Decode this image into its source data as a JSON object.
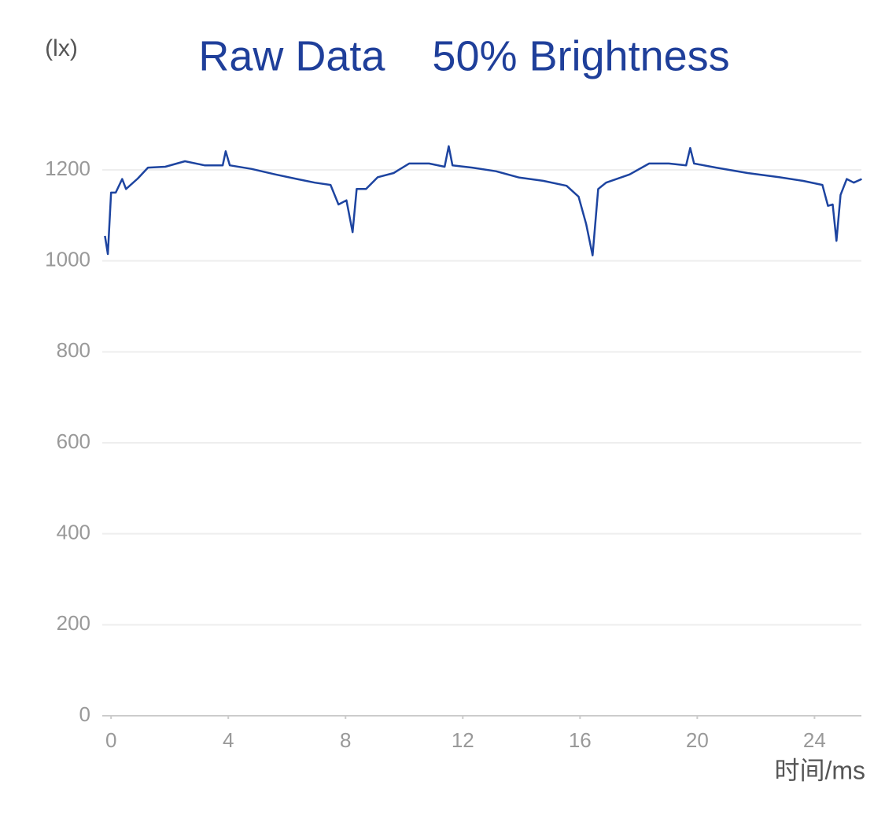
{
  "chart_data": {
    "type": "line",
    "title": "Raw Data    50% Brightness",
    "y_unit": "(lx)",
    "x_label": "时间/ms",
    "xlim": [
      -0.3,
      25.6
    ],
    "ylim": [
      0,
      1200
    ],
    "xticks": [
      0,
      4,
      8,
      12,
      16,
      20,
      24
    ],
    "yticks": [
      0,
      200,
      400,
      600,
      800,
      1000,
      1200
    ],
    "grid": true,
    "x": [
      -0.21,
      -0.11,
      0,
      0.16,
      0.38,
      0.51,
      0.91,
      1.26,
      1.85,
      2.52,
      3.19,
      3.81,
      3.91,
      4.05,
      4.8,
      5.61,
      6.41,
      6.95,
      7.49,
      7.76,
      8.03,
      8.24,
      8.38,
      8.7,
      9.1,
      9.64,
      10.17,
      10.85,
      11.38,
      11.52,
      11.65,
      12.32,
      13.13,
      13.93,
      14.74,
      15.54,
      15.95,
      16.21,
      16.43,
      16.62,
      16.89,
      17.69,
      18.36,
      19.03,
      19.62,
      19.76,
      19.89,
      20.64,
      21.72,
      22.79,
      23.6,
      24.27,
      24.46,
      24.62,
      24.75,
      24.89,
      25.1,
      25.34,
      25.61
    ],
    "series": [
      {
        "name": "lx",
        "color": "#1d44a0",
        "values": [
          1055,
          1015,
          1150,
          1150,
          1180,
          1158,
          1181,
          1205,
          1207,
          1219,
          1210,
          1210,
          1241,
          1210,
          1202,
          1190,
          1179,
          1172,
          1167,
          1124,
          1133,
          1063,
          1158,
          1158,
          1184,
          1193,
          1214,
          1214,
          1207,
          1252,
          1210,
          1205,
          1197,
          1183,
          1176,
          1165,
          1141,
          1081,
          1012,
          1158,
          1172,
          1190,
          1214,
          1214,
          1210,
          1248,
          1214,
          1205,
          1193,
          1184,
          1176,
          1167,
          1121,
          1124,
          1044,
          1145,
          1180,
          1172,
          1180
        ]
      }
    ]
  }
}
